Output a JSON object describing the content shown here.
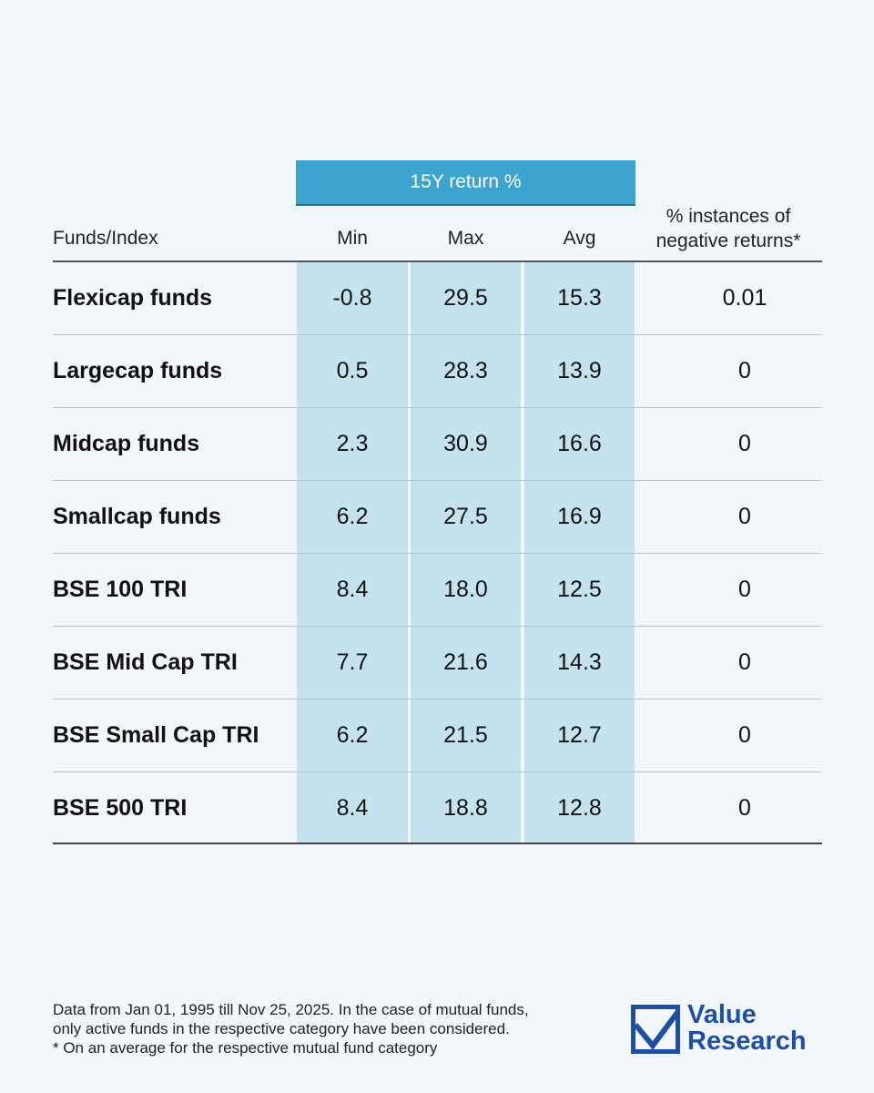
{
  "table": {
    "group_header": "15Y return %",
    "headers": {
      "funds": "Funds/Index",
      "min": "Min",
      "max": "Max",
      "avg": "Avg",
      "neg_line1": "% instances of",
      "neg_line2": "negative returns*"
    },
    "rows": [
      {
        "name": "Flexicap funds",
        "min": "-0.8",
        "max": "29.5",
        "avg": "15.3",
        "neg": "0.01"
      },
      {
        "name": "Largecap funds",
        "min": "0.5",
        "max": "28.3",
        "avg": "13.9",
        "neg": "0"
      },
      {
        "name": "Midcap funds",
        "min": "2.3",
        "max": "30.9",
        "avg": "16.6",
        "neg": "0"
      },
      {
        "name": "Smallcap funds",
        "min": "6.2",
        "max": "27.5",
        "avg": "16.9",
        "neg": "0"
      },
      {
        "name": "BSE 100 TRI",
        "min": "8.4",
        "max": "18.0",
        "avg": "12.5",
        "neg": "0"
      },
      {
        "name": "BSE Mid Cap TRI",
        "min": "7.7",
        "max": "21.6",
        "avg": "14.3",
        "neg": "0"
      },
      {
        "name": "BSE Small Cap TRI",
        "min": "6.2",
        "max": "21.5",
        "avg": "12.7",
        "neg": "0"
      },
      {
        "name": "BSE 500 TRI",
        "min": "8.4",
        "max": "18.8",
        "avg": "12.8",
        "neg": "0"
      }
    ]
  },
  "footnote": {
    "line1": "Data from Jan 01, 1995 till Nov 25, 2025. In the case of mutual funds,",
    "line2": "only active funds in the respective category have been considered.",
    "line3": "* On an average for the respective mutual fund category"
  },
  "logo": {
    "line1": "Value",
    "line2": "Research",
    "icon": "checkbox-check-icon",
    "color": "#1f4fa3"
  },
  "colors": {
    "background": "#f1f7fa",
    "header_bar": "#3da4cf",
    "column_shade": "#c5e3ef"
  }
}
